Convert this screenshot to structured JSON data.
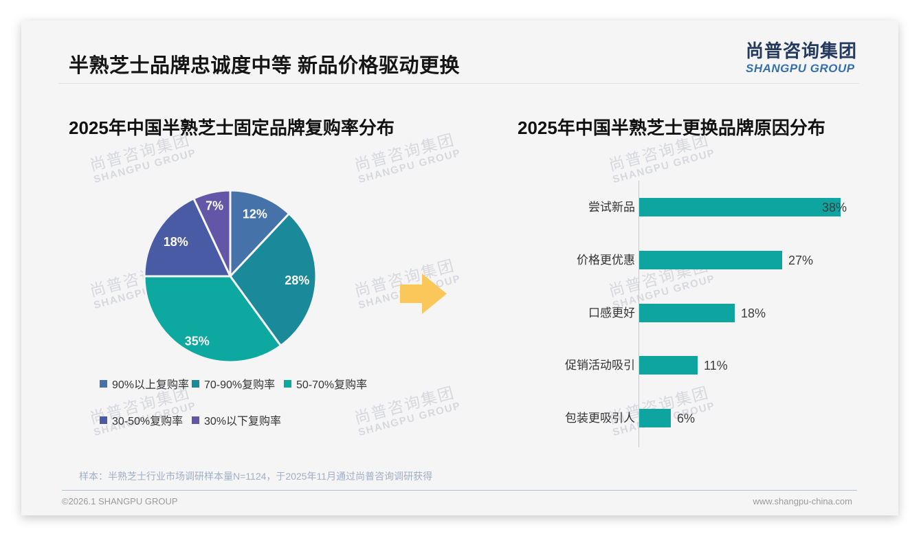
{
  "page": {
    "title": "半熟芝士品牌忠诚度中等 新品价格驱动更换",
    "logo": {
      "cn": "尚普咨询集团",
      "en": "SHANGPU GROUP"
    },
    "watermark": {
      "cn": "尚普咨询集团",
      "en": "SHANGPU GROUP"
    },
    "footer_note": "样本：半熟芝士行业市场调研样本量N=1124，于2025年11月通过尚普咨询调研获得",
    "footer_left": "©2026.1 SHANGPU GROUP",
    "footer_right": "www.shangpu-china.com",
    "arrow_color": "#FBC75B"
  },
  "chart_data": [
    {
      "type": "pie",
      "title": "2025年中国半熟芝士固定品牌复购率分布",
      "labels": [
        "90%以上复购率",
        "70-90%复购率",
        "50-70%复购率",
        "30-50%复购率",
        "30%以下复购率"
      ],
      "values": [
        12,
        28,
        35,
        18,
        7
      ],
      "unit": "%",
      "colors": [
        "#4573A9",
        "#1A8A9B",
        "#0DA8A0",
        "#4A5BA5",
        "#6456A6"
      ],
      "start_angle": "top",
      "direction": "clockwise",
      "legend_position": "bottom"
    },
    {
      "type": "bar",
      "orientation": "horizontal",
      "title": "2025年中国半熟芝士更换品牌原因分布",
      "categories": [
        "尝试新品",
        "价格更优惠",
        "口感更好",
        "促销活动吸引",
        "包装更吸引人"
      ],
      "values": [
        38,
        27,
        18,
        11,
        6
      ],
      "unit": "%",
      "bar_color": "#0EA5A0",
      "xlim": [
        0,
        40
      ],
      "grid": false,
      "legend_position": "none"
    }
  ]
}
